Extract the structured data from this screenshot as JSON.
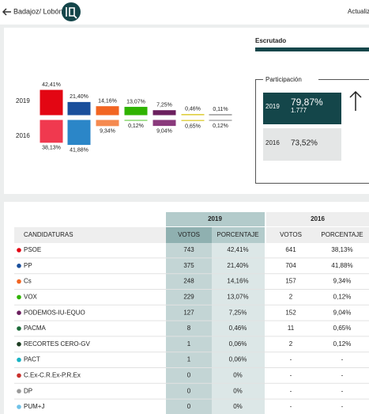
{
  "header": {
    "location": "Badajoz/ Lobón",
    "update": "Actualiza"
  },
  "chart": {
    "years": [
      "2019",
      "2016"
    ],
    "rows": [
      {
        "values": [
          42.41,
          21.4,
          14.16,
          13.07,
          7.25,
          0.46,
          0.11
        ],
        "value_labels": [
          "42,41%",
          "21,40%",
          "14,16%",
          "13,07%",
          "7,25%",
          "0,46%",
          "0,11%"
        ],
        "colors": [
          "#e30613",
          "#1a4f9c",
          "#f26522",
          "#2fb300",
          "#6b1f5e",
          "#d8c61a",
          "#6d6d6d"
        ]
      },
      {
        "values": [
          38.13,
          41.88,
          9.34,
          0.12,
          9.04,
          0.65,
          0.12
        ],
        "value_labels": [
          "38,13%",
          "41,88%",
          "9,34%",
          "0,12%",
          "9,04%",
          "0,65%",
          "0,12%"
        ],
        "colors": [
          "#f0394f",
          "#2b86c8",
          "#f58a50",
          "#5fc83a",
          "#8a3a7c",
          "#e0d24a",
          "#8a8a8a"
        ]
      }
    ]
  },
  "scrutiny": {
    "label": "Escrutado"
  },
  "participation": {
    "title": "Participación",
    "current": {
      "year": "2019",
      "percent": "79,87%",
      "votes": "1.777"
    },
    "previous": {
      "year": "2016",
      "percent": "73,52%"
    }
  },
  "table": {
    "years": [
      "2019",
      "2016"
    ],
    "columns": [
      "CANDIDATURAS",
      "VOTOS",
      "PORCENTAJE",
      "VOTOS",
      "PORCENTAJE"
    ],
    "dot_colors": [
      "#e30613",
      "#1a4f9c",
      "#f26522",
      "#2fb300",
      "#6b1f5e",
      "#1d6b3a",
      "#1d3d23",
      "#19b3c4",
      "#c9302c",
      "#9a9a9a",
      "#6fc2e8"
    ],
    "rows": [
      [
        "PSOE",
        "743",
        "42,41%",
        "641",
        "38,13%"
      ],
      [
        "PP",
        "375",
        "21,40%",
        "704",
        "41,88%"
      ],
      [
        "Cs",
        "248",
        "14,16%",
        "157",
        "9,34%"
      ],
      [
        "VOX",
        "229",
        "13,07%",
        "2",
        "0,12%"
      ],
      [
        "PODEMOS-IU-EQUO",
        "127",
        "7,25%",
        "152",
        "9,04%"
      ],
      [
        "PACMA",
        "8",
        "0,46%",
        "11",
        "0,65%"
      ],
      [
        "RECORTES CERO-GV",
        "1",
        "0,06%",
        "2",
        "0,12%"
      ],
      [
        "PACT",
        "1",
        "0,06%",
        "-",
        "-"
      ],
      [
        "C.Ex-C.R.Ex-P.R.Ex",
        "0",
        "0%",
        "-",
        "-"
      ],
      [
        "DP",
        "0",
        "0%",
        "-",
        "-"
      ],
      [
        "PUM+J",
        "0",
        "0%",
        "-",
        "-"
      ]
    ]
  }
}
